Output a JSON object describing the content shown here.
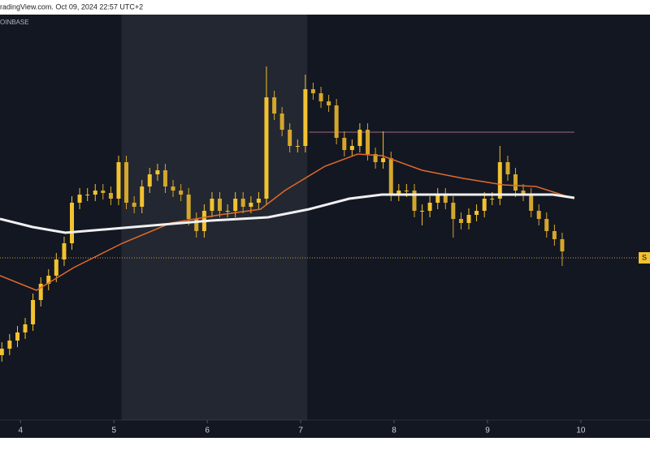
{
  "chart_data": {
    "type": "candlestick",
    "watermark": "radingView.com. Oct 09, 2024 22:57 UTC+2",
    "symbol": "OINBASE",
    "price_label": "S",
    "xlim": [
      3.78,
      10.74
    ],
    "xticks": [
      4,
      5,
      6,
      7,
      8,
      9,
      10
    ],
    "ylim": [
      0,
      500
    ],
    "up_color": "#f2c230",
    "down_color": "#d4a72c",
    "x": [
      3.8,
      3.883,
      3.967,
      4.05,
      4.133,
      4.217,
      4.3,
      4.383,
      4.467,
      4.55,
      4.633,
      4.717,
      4.8,
      4.883,
      4.967,
      5.05,
      5.133,
      5.217,
      5.3,
      5.383,
      5.467,
      5.55,
      5.633,
      5.717,
      5.8,
      5.883,
      5.967,
      6.05,
      6.133,
      6.217,
      6.3,
      6.383,
      6.467,
      6.55,
      6.633,
      6.717,
      6.8,
      6.883,
      6.967,
      7.05,
      7.133,
      7.217,
      7.3,
      7.383,
      7.467,
      7.55,
      7.633,
      7.717,
      7.8,
      7.883,
      7.967,
      8.05,
      8.133,
      8.217,
      8.3,
      8.383,
      8.467,
      8.55,
      8.633,
      8.717,
      8.8,
      8.883,
      8.967,
      9.05,
      9.133,
      9.217,
      9.3,
      9.383,
      9.467,
      9.55,
      9.633,
      9.717,
      9.8
    ],
    "open": [
      80,
      88,
      98,
      108,
      118,
      148,
      168,
      178,
      198,
      218,
      268,
      278,
      278,
      283,
      280,
      273,
      318,
      268,
      263,
      288,
      303,
      308,
      288,
      283,
      278,
      248,
      233,
      258,
      273,
      258,
      258,
      273,
      263,
      268,
      273,
      398,
      378,
      358,
      338,
      338,
      408,
      403,
      393,
      388,
      348,
      333,
      338,
      358,
      328,
      318,
      323,
      278,
      283,
      283,
      258,
      258,
      268,
      278,
      268,
      248,
      243,
      253,
      258,
      273,
      273,
      318,
      303,
      283,
      278,
      258,
      248,
      233,
      223
    ],
    "high": [
      96,
      106,
      116,
      126,
      156,
      176,
      186,
      206,
      226,
      276,
      286,
      286,
      291,
      291,
      288,
      326,
      326,
      276,
      296,
      311,
      316,
      316,
      296,
      291,
      286,
      256,
      266,
      281,
      281,
      266,
      281,
      281,
      276,
      281,
      436,
      406,
      386,
      366,
      346,
      426,
      416,
      411,
      401,
      396,
      356,
      346,
      366,
      366,
      336,
      356,
      331,
      291,
      291,
      291,
      266,
      276,
      286,
      286,
      276,
      256,
      261,
      266,
      281,
      281,
      338,
      326,
      311,
      291,
      286,
      266,
      256,
      241,
      231
    ],
    "low": [
      72,
      80,
      90,
      100,
      110,
      140,
      160,
      170,
      190,
      210,
      260,
      270,
      270,
      272,
      265,
      265,
      260,
      255,
      255,
      280,
      295,
      280,
      275,
      270,
      240,
      225,
      225,
      250,
      250,
      250,
      250,
      255,
      255,
      260,
      265,
      370,
      350,
      330,
      330,
      330,
      395,
      385,
      380,
      340,
      325,
      325,
      330,
      320,
      310,
      310,
      270,
      270,
      275,
      250,
      240,
      250,
      260,
      260,
      225,
      235,
      235,
      245,
      250,
      265,
      265,
      295,
      275,
      270,
      250,
      240,
      225,
      215,
      190
    ],
    "close": [
      88,
      98,
      108,
      118,
      148,
      168,
      178,
      198,
      218,
      268,
      278,
      278,
      283,
      280,
      273,
      318,
      268,
      263,
      288,
      303,
      308,
      288,
      283,
      278,
      248,
      233,
      258,
      273,
      258,
      258,
      273,
      263,
      268,
      273,
      398,
      378,
      358,
      338,
      338,
      408,
      403,
      393,
      388,
      348,
      333,
      338,
      358,
      328,
      318,
      323,
      278,
      283,
      283,
      258,
      258,
      268,
      278,
      268,
      248,
      243,
      253,
      258,
      273,
      273,
      318,
      303,
      283,
      278,
      258,
      248,
      233,
      223,
      208
    ],
    "lines": [
      {
        "color": "#e06a2c",
        "x": [
          3.78,
          4.17,
          4.57,
          5.09,
          5.61,
          6.13,
          6.57,
          6.83,
          7.26,
          7.61,
          7.87,
          8.3,
          8.74,
          9.17,
          9.52,
          9.93
        ],
        "values": [
          178,
          160,
          188,
          218,
          243,
          253,
          260,
          283,
          313,
          328,
          326,
          308,
          298,
          290,
          288,
          273
        ]
      },
      {
        "color": "#f0f0f0",
        "x": [
          3.78,
          4.13,
          4.48,
          5.0,
          5.52,
          6.04,
          6.65,
          7.09,
          7.52,
          7.87,
          8.3,
          8.65,
          9.17,
          9.7,
          9.93
        ],
        "values": [
          248,
          238,
          231,
          236,
          241,
          246,
          250,
          260,
          273,
          278,
          278,
          278,
          278,
          278,
          274
        ]
      }
    ],
    "levels": [
      {
        "value": 200,
        "color": "#c8a040",
        "from": 3.78,
        "to": 10.74,
        "dotted": true
      },
      {
        "value": 355,
        "color": "#a06b78",
        "from": 7.09,
        "to": 9.93,
        "dotted": false
      }
    ],
    "shade": [
      5.08,
      7.07
    ]
  }
}
